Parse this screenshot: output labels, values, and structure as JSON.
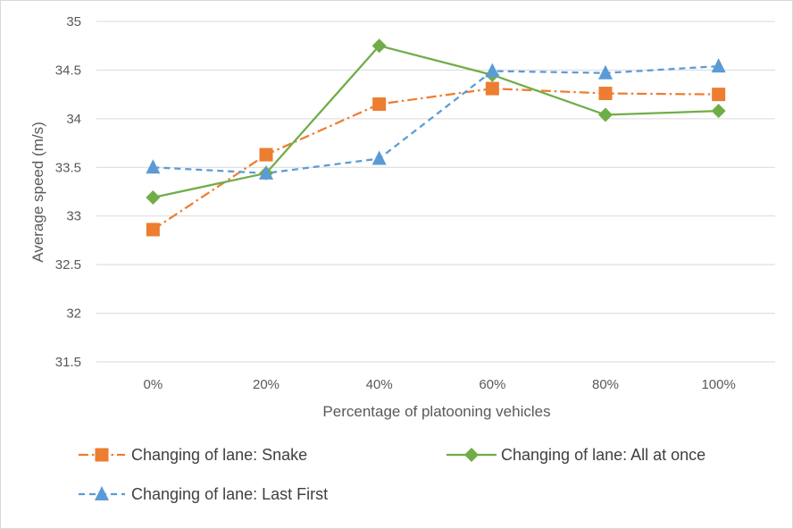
{
  "chart_data": {
    "type": "line",
    "title": "",
    "xlabel": "Percentage of platooning vehicles",
    "ylabel": "Average speed (m/s)",
    "categories": [
      "0%",
      "20%",
      "40%",
      "60%",
      "80%",
      "100%"
    ],
    "ylim": [
      31.5,
      35
    ],
    "yticks": [
      31.5,
      32,
      32.5,
      33,
      33.5,
      34,
      34.5,
      35
    ],
    "ytick_labels": [
      "31.5",
      "32",
      "32.5",
      "33",
      "33.5",
      "34",
      "34.5",
      "35"
    ],
    "grid": true,
    "legend_position": "bottom",
    "series": [
      {
        "name": "Changing of lane: Snake",
        "values": [
          32.86,
          33.63,
          34.15,
          34.31,
          34.26,
          34.25
        ],
        "color": "#ED7D31",
        "marker": "square",
        "dash": "dash-dot"
      },
      {
        "name": "Changing of lane: All at once",
        "values": [
          33.19,
          33.44,
          34.75,
          34.45,
          34.04,
          34.08
        ],
        "color": "#70AD47",
        "marker": "diamond",
        "dash": "solid"
      },
      {
        "name": "Changing of lane: Last First",
        "values": [
          33.5,
          33.44,
          33.59,
          34.49,
          34.47,
          34.54
        ],
        "color": "#5B9BD5",
        "marker": "triangle",
        "dash": "dashed"
      }
    ]
  }
}
